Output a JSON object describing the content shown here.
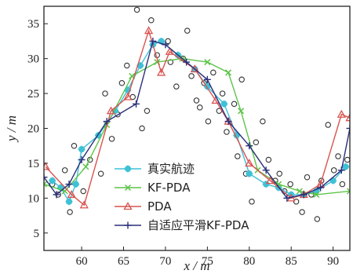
{
  "chart_data": {
    "type": "line",
    "xlabel": "x / m",
    "ylabel": "y / m",
    "xlim": [
      55.5,
      92
    ],
    "ylim": [
      2.5,
      37.5
    ],
    "xticks": [
      60,
      65,
      70,
      75,
      80,
      85,
      90
    ],
    "yticks": [
      5,
      10,
      15,
      20,
      25,
      30,
      35
    ],
    "grid": false,
    "legend_position": "bottom-left",
    "series": [
      {
        "name": "真实航迹",
        "color": "#3fc1d6",
        "marker": "star",
        "x": [
          56.5,
          57.5,
          58.5,
          59.3,
          60.0,
          62.0,
          64.0,
          65.5,
          67.0,
          68.5,
          69.5,
          71.5,
          73.5,
          75.0,
          77.0,
          78.5,
          80.0,
          82.0,
          83.5,
          85.0,
          86.5,
          88.0,
          90.0,
          91.5
        ],
        "y": [
          12.5,
          11.5,
          9.5,
          12.0,
          17.0,
          19.0,
          22.5,
          25.5,
          29.0,
          32.0,
          32.5,
          30.5,
          28.5,
          26.0,
          23.5,
          19.0,
          13.5,
          12.0,
          11.5,
          10.5,
          10.5,
          11.0,
          12.5,
          14.5
        ]
      },
      {
        "name": "KF-PDA",
        "color": "#5ec44a",
        "marker": "x",
        "x": [
          55.5,
          58.0,
          60.5,
          63.0,
          66.0,
          69.0,
          72.0,
          75.0,
          77.5,
          79.0,
          81.0,
          83.5,
          86.0,
          88.0,
          92.0
        ],
        "y": [
          12.0,
          11.0,
          14.5,
          20.5,
          27.5,
          29.5,
          30.0,
          29.5,
          28.0,
          22.5,
          14.0,
          12.0,
          11.0,
          10.5,
          11.0
        ]
      },
      {
        "name": "PDA",
        "color": "#d9534f",
        "marker": "triangle",
        "x": [
          55.7,
          58.8,
          60.3,
          63.5,
          65.5,
          68.0,
          69.5,
          70.5,
          73.5,
          76.0,
          77.5,
          80.0,
          82.5,
          85.0,
          86.5,
          88.5,
          91.0,
          92.0
        ],
        "y": [
          14.5,
          10.5,
          9.0,
          22.5,
          24.5,
          34.0,
          28.0,
          31.0,
          28.5,
          24.0,
          21.0,
          15.0,
          12.5,
          10.0,
          10.5,
          12.0,
          22.0,
          21.5
        ]
      },
      {
        "name": "自适应平滑KF-PDA",
        "color": "#2a2f7a",
        "marker": "plus",
        "x": [
          55.5,
          57.0,
          58.5,
          60.0,
          63.0,
          66.5,
          68.5,
          70.0,
          72.5,
          75.0,
          77.5,
          80.0,
          82.0,
          84.5,
          86.5,
          88.5,
          91.0,
          92.0
        ],
        "y": [
          13.0,
          10.5,
          12.0,
          15.5,
          21.0,
          23.5,
          32.5,
          32.0,
          29.5,
          27.0,
          21.0,
          17.5,
          14.0,
          10.0,
          10.5,
          11.5,
          14.0,
          20.0
        ]
      }
    ],
    "clutter_points": {
      "marker": "circle",
      "color": "#333333",
      "x": [
        56.5,
        57.2,
        58.0,
        58.6,
        59.1,
        60.2,
        61.0,
        62.3,
        62.8,
        63.6,
        64.3,
        64.8,
        65.4,
        66.1,
        66.6,
        67.2,
        67.8,
        68.3,
        69.0,
        70.3,
        70.6,
        71.3,
        72.1,
        72.6,
        73.1,
        73.7,
        74.1,
        74.6,
        75.1,
        75.7,
        76.4,
        76.8,
        77.3,
        78.2,
        78.6,
        79.1,
        79.6,
        80.3,
        80.8,
        81.6,
        82.3,
        83.1,
        83.6,
        84.2,
        84.9,
        85.6,
        86.3,
        86.9,
        87.4,
        88.1,
        88.6,
        89.4,
        90.1,
        90.6,
        91.1,
        91.7
      ],
      "y": [
        12.0,
        10.5,
        14.0,
        8.0,
        17.5,
        11.0,
        15.5,
        13.5,
        25.0,
        18.5,
        22.0,
        26.5,
        29.0,
        24.5,
        37.0,
        20.0,
        22.5,
        35.5,
        30.5,
        32.5,
        29.5,
        26.0,
        30.0,
        34.0,
        27.5,
        24.0,
        23.0,
        26.5,
        21.0,
        28.0,
        22.5,
        25.0,
        19.5,
        23.5,
        16.0,
        27.0,
        13.5,
        9.5,
        18.0,
        21.0,
        15.5,
        12.5,
        13.5,
        11.0,
        12.0,
        9.5,
        8.0,
        13.0,
        10.5,
        7.0,
        12.5,
        20.5,
        14.0,
        16.0,
        12.0,
        15.5
      ]
    }
  }
}
